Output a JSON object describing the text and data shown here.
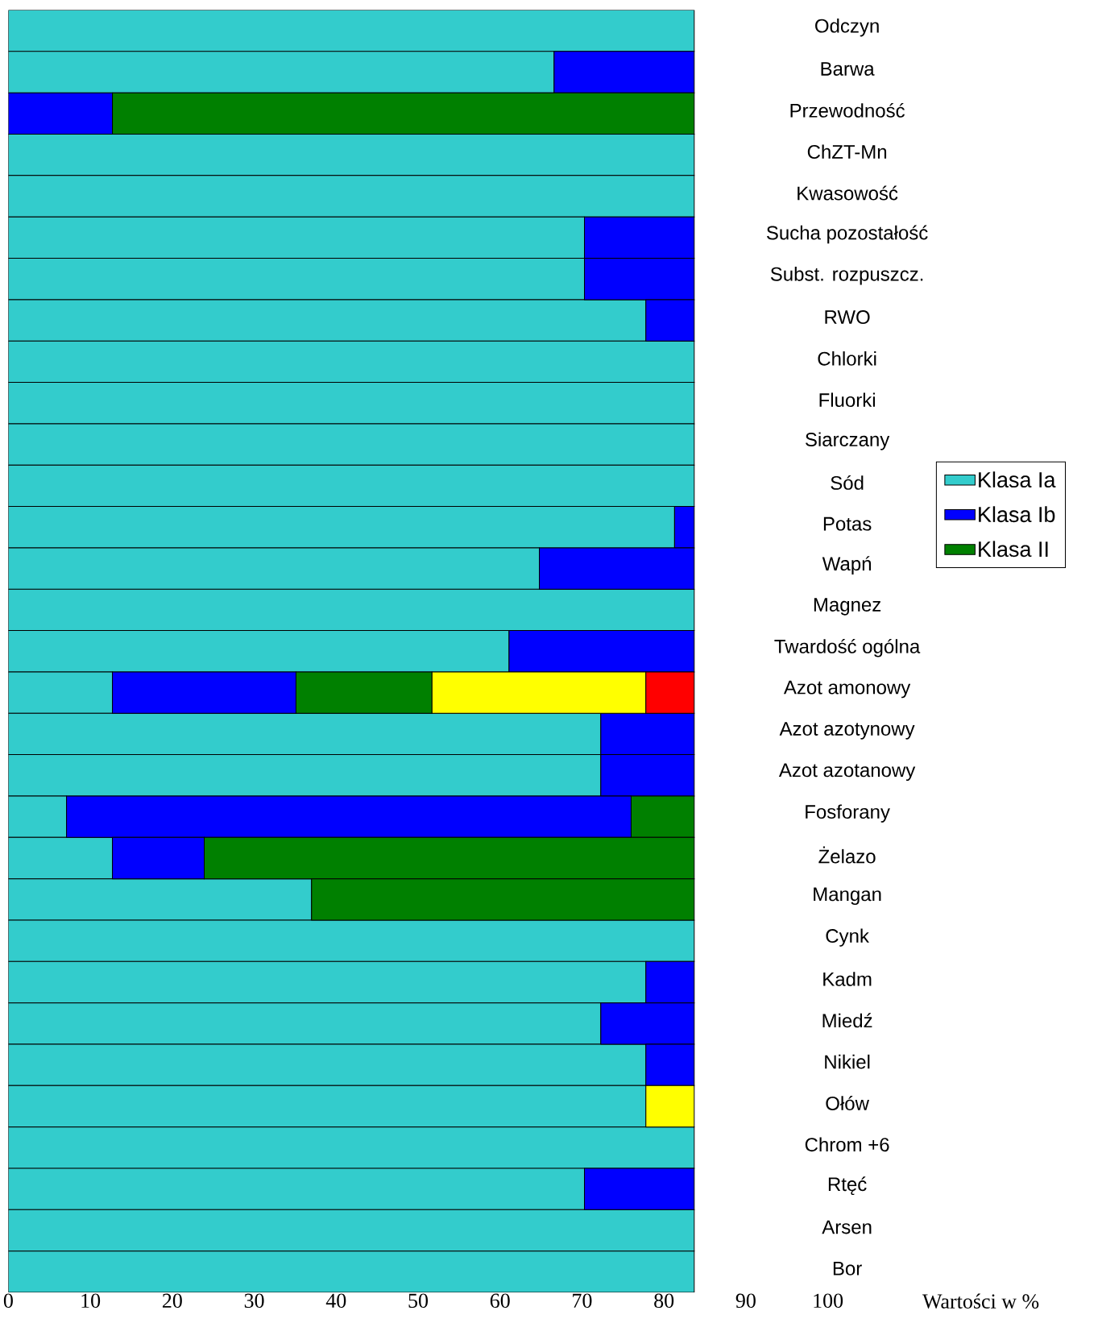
{
  "chart_data": {
    "type": "bar",
    "orientation": "horizontal",
    "stacked": true,
    "xlabel": "Wartości w %",
    "xlim": [
      0,
      100
    ],
    "xticks": [
      0,
      10,
      20,
      30,
      40,
      50,
      60,
      70,
      80,
      90,
      100
    ],
    "legend": "right",
    "categories": [
      "Odczyn",
      "Barwa",
      "Przewodność",
      "ChZT-Mn",
      "Kwasowość",
      "Sucha pozostałość",
      "Subst. rozpuszcz.",
      "RWO",
      "Chlorki",
      "Fluorki",
      "Siarczany",
      "Sód",
      "Potas",
      "Wapń",
      "Magnez",
      "Twardość ogólna",
      "Azot amonowy",
      "Azot azotynowy",
      "Azot azotanowy",
      "Fosforany",
      "Żelazo",
      "Mangan",
      "Cynk",
      "Kadm",
      "Miedź",
      "Nikiel",
      "Ołów",
      "Chrom +6",
      "Rtęć",
      "Arsen",
      "Bor"
    ],
    "series": [
      {
        "name": "Klasa Ia",
        "color": "#33cccc",
        "values": [
          83.7,
          66.6,
          null,
          83.7,
          83.7,
          70.3,
          70.3,
          77.8,
          83.7,
          83.7,
          83.7,
          83.7,
          81.3,
          64.8,
          83.7,
          61.1,
          12.7,
          72.3,
          72.3,
          7.1,
          12.7,
          37.0,
          83.7,
          77.8,
          72.3,
          77.8,
          77.8,
          83.7,
          70.3,
          83.7,
          83.7
        ]
      },
      {
        "name": "Klasa Ib",
        "color": "#0000ff",
        "values": [
          null,
          17.1,
          12.7,
          null,
          null,
          13.4,
          13.4,
          5.9,
          null,
          null,
          null,
          null,
          2.4,
          18.9,
          null,
          22.6,
          22.4,
          11.4,
          11.4,
          68.9,
          11.2,
          null,
          null,
          5.9,
          11.4,
          5.9,
          null,
          null,
          13.4,
          null,
          null
        ]
      },
      {
        "name": "Klasa II",
        "color": "#008000",
        "values": [
          null,
          null,
          71.0,
          null,
          null,
          null,
          null,
          null,
          null,
          null,
          null,
          null,
          null,
          null,
          null,
          null,
          16.6,
          null,
          null,
          7.7,
          59.8,
          46.7,
          null,
          null,
          null,
          null,
          null,
          null,
          null,
          null,
          null
        ]
      },
      {
        "color": "#ffff00",
        "values": [
          null,
          null,
          null,
          null,
          null,
          null,
          null,
          null,
          null,
          null,
          null,
          null,
          null,
          null,
          null,
          null,
          26.1,
          null,
          null,
          null,
          null,
          null,
          null,
          null,
          null,
          null,
          5.9,
          null,
          null,
          null,
          null
        ]
      },
      {
        "color": "#ff0000",
        "values": [
          null,
          null,
          null,
          null,
          null,
          null,
          null,
          null,
          null,
          null,
          null,
          null,
          null,
          null,
          null,
          null,
          5.9,
          null,
          null,
          null,
          null,
          null,
          null,
          null,
          null,
          null,
          null,
          null,
          null,
          null,
          null
        ]
      }
    ]
  }
}
